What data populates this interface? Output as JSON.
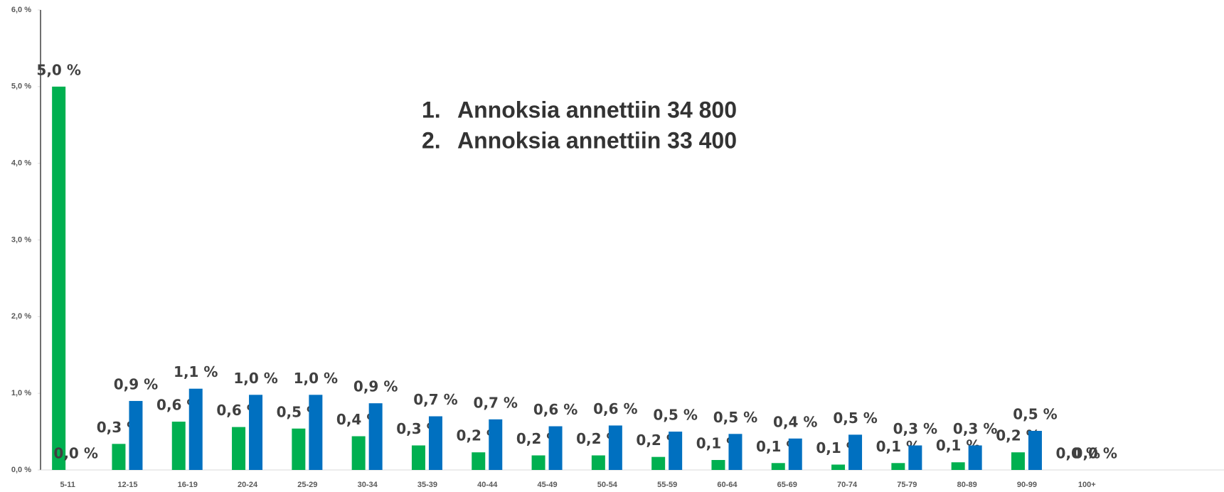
{
  "chart_data": {
    "type": "bar",
    "categories": [
      "5-11",
      "12-15",
      "16-19",
      "20-24",
      "25-29",
      "30-34",
      "35-39",
      "40-44",
      "45-49",
      "50-54",
      "55-59",
      "60-64",
      "65-69",
      "70-74",
      "75-79",
      "80-89",
      "90-99",
      "100+"
    ],
    "series": [
      {
        "color": "#00b050",
        "values": [
          5.0,
          0.34,
          0.63,
          0.56,
          0.54,
          0.44,
          0.32,
          0.23,
          0.19,
          0.19,
          0.17,
          0.13,
          0.09,
          0.07,
          0.09,
          0.1,
          0.23,
          0.0
        ],
        "value_labels": [
          "5,0 %",
          "0,3 %",
          "0,6 %",
          "0,6 %",
          "0,5 %",
          "0,4 %",
          "0,3 %",
          "0,2 %",
          "0,2 %",
          "0,2 %",
          "0,2 %",
          "0,1 %",
          "0,1 %",
          "0,1 %",
          "0,1 %",
          "0,1 %",
          "0,2 %",
          "0,0 %"
        ]
      },
      {
        "color": "#0070c0",
        "values": [
          0.0,
          0.9,
          1.06,
          0.98,
          0.98,
          0.87,
          0.7,
          0.66,
          0.57,
          0.58,
          0.5,
          0.47,
          0.41,
          0.46,
          0.32,
          0.32,
          0.51,
          0.0
        ],
        "value_labels": [
          "0,0 %",
          "0,9 %",
          "1,1 %",
          "1,0 %",
          "1,0 %",
          "0,9 %",
          "0,7 %",
          "0,7 %",
          "0,6 %",
          "0,6 %",
          "0,5 %",
          "0,5 %",
          "0,4 %",
          "0,5 %",
          "0,3 %",
          "0,3 %",
          "0,5 %",
          "0,0 %"
        ]
      }
    ],
    "ylim": [
      0,
      6
    ],
    "yticks": [
      {
        "value": 0,
        "label": "0,0 %"
      },
      {
        "value": 1,
        "label": "1,0 %"
      },
      {
        "value": 2,
        "label": "2,0 %"
      },
      {
        "value": 3,
        "label": "3,0 %"
      },
      {
        "value": 4,
        "label": "4,0 %"
      },
      {
        "value": 5,
        "label": "5,0 %"
      },
      {
        "value": 6,
        "label": "6,0 %"
      }
    ],
    "annotations": [
      {
        "number": "1.",
        "text": "Annoksia annettiin 34 800"
      },
      {
        "number": "2.",
        "text": "Annoksia annettiin 33 400"
      }
    ]
  }
}
